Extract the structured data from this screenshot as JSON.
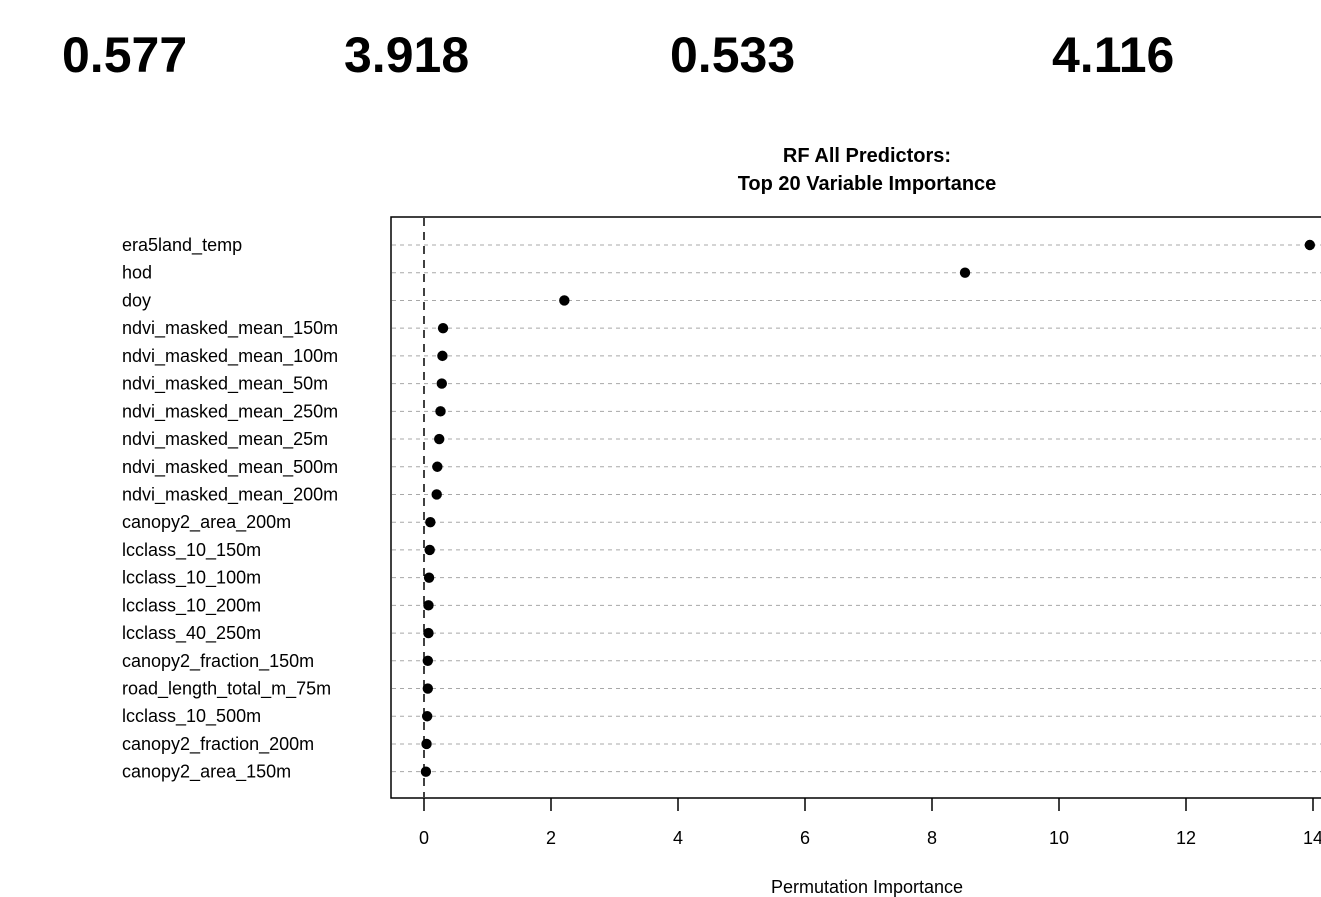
{
  "metrics": [
    "0.577",
    "3.918",
    "0.533",
    "4.116"
  ],
  "chart_data": {
    "type": "scatter",
    "title": "RF All Predictors:",
    "subtitle": "Top 20 Variable Importance",
    "xlabel": "Permutation Importance",
    "ylabel": "",
    "xlim": [
      0,
      14
    ],
    "xticks": [
      0,
      2,
      4,
      6,
      8,
      10,
      12,
      14
    ],
    "grid": true,
    "reference_line_x": 0,
    "categories": [
      "era5land_temp",
      "hod",
      "doy",
      "ndvi_masked_mean_150m",
      "ndvi_masked_mean_100m",
      "ndvi_masked_mean_50m",
      "ndvi_masked_mean_250m",
      "ndvi_masked_mean_25m",
      "ndvi_masked_mean_500m",
      "ndvi_masked_mean_200m",
      "canopy2_area_200m",
      "lcclass_10_150m",
      "lcclass_10_100m",
      "lcclass_10_200m",
      "lcclass_40_250m",
      "canopy2_fraction_150m",
      "road_length_total_m_75m",
      "lcclass_10_500m",
      "canopy2_fraction_200m",
      "canopy2_area_150m"
    ],
    "values": [
      13.95,
      8.52,
      2.21,
      0.3,
      0.29,
      0.28,
      0.26,
      0.24,
      0.21,
      0.2,
      0.1,
      0.09,
      0.08,
      0.07,
      0.07,
      0.06,
      0.06,
      0.05,
      0.04,
      0.03
    ]
  }
}
